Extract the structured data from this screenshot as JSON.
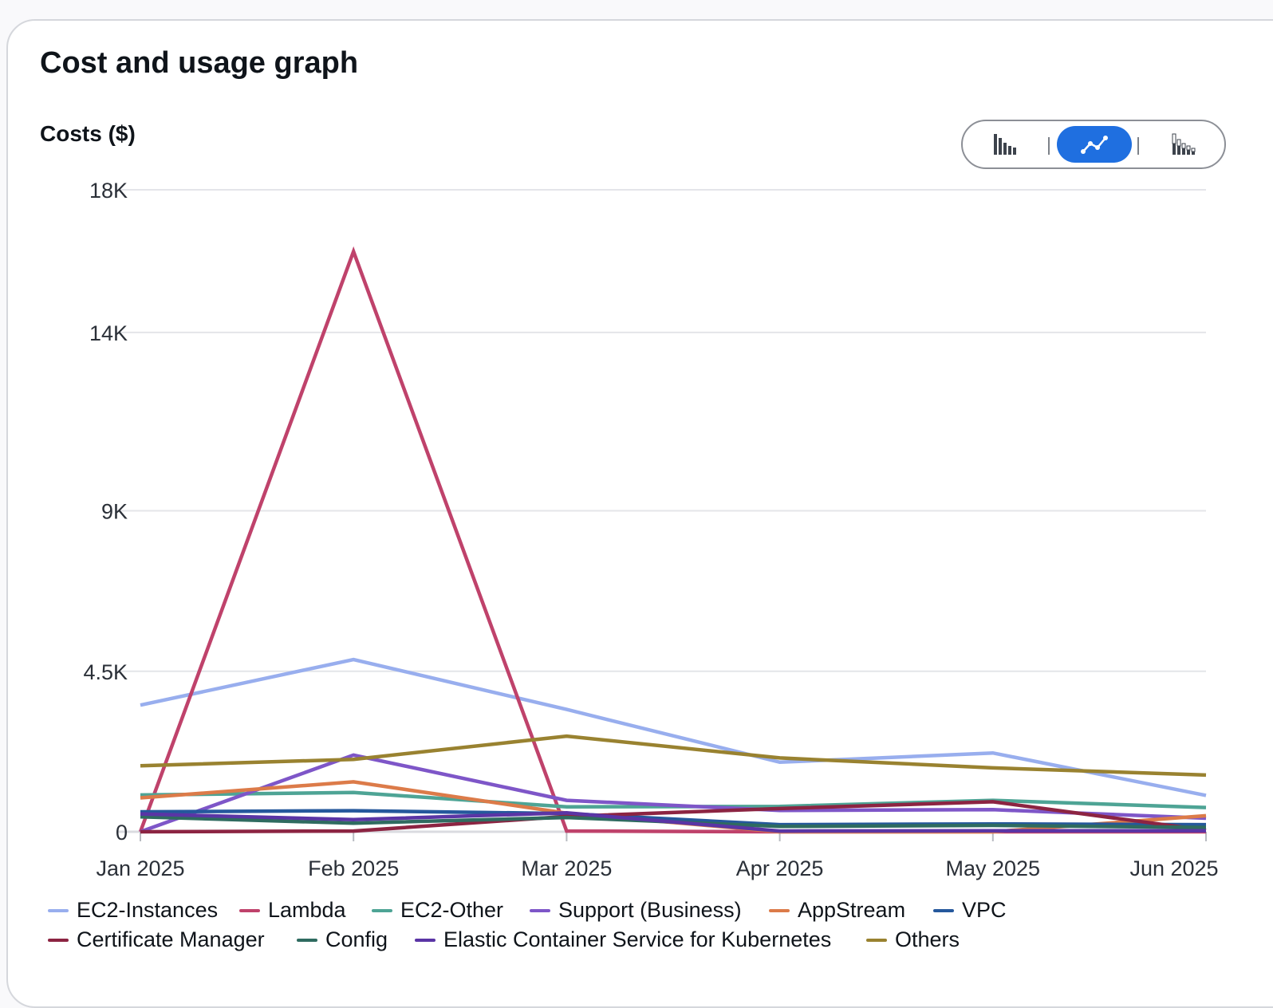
{
  "card": {
    "title": "Cost and usage graph"
  },
  "toggle": {
    "options": [
      "bar-chart-icon",
      "line-chart-icon",
      "stacked-bar-chart-icon"
    ],
    "selected": "line-chart-icon",
    "accent": "#1f6fe0"
  },
  "chart_data": {
    "type": "line",
    "title": "Cost and usage graph",
    "ylabel": "Costs ($)",
    "xlabel": "",
    "categories": [
      "Jan 2025",
      "Feb 2025",
      "Mar 2025",
      "Apr 2025",
      "May 2025",
      "Jun 2025"
    ],
    "ylim": [
      0,
      18000
    ],
    "yticks": [
      {
        "value": 0,
        "label": "0"
      },
      {
        "value": 4500,
        "label": "4.5K"
      },
      {
        "value": 9000,
        "label": "9K"
      },
      {
        "value": 14000,
        "label": "14K"
      },
      {
        "value": 18000,
        "label": "18K"
      }
    ],
    "grid": true,
    "legend_position": "bottom",
    "series": [
      {
        "name": "EC2-Instances",
        "color": "#98aeee",
        "values": [
          3550,
          4830,
          3430,
          1950,
          2210,
          1020
        ]
      },
      {
        "name": "Lambda",
        "color": "#bf426b",
        "values": [
          0,
          16270,
          20,
          0,
          0,
          0
        ]
      },
      {
        "name": "EC2-Other",
        "color": "#4ea495",
        "values": [
          1030,
          1100,
          700,
          710,
          880,
          680
        ]
      },
      {
        "name": "Support (Business)",
        "color": "#7e56c8",
        "values": [
          0,
          2150,
          880,
          600,
          620,
          380
        ]
      },
      {
        "name": "AppStream",
        "color": "#dc7b49",
        "values": [
          950,
          1400,
          520,
          0,
          0,
          450
        ]
      },
      {
        "name": "VPC",
        "color": "#25589c",
        "values": [
          560,
          590,
          510,
          200,
          220,
          200
        ]
      },
      {
        "name": "Certificate Manager",
        "color": "#8c2442",
        "values": [
          0,
          20,
          430,
          650,
          840,
          40
        ]
      },
      {
        "name": "Config",
        "color": "#2f6b60",
        "values": [
          420,
          240,
          400,
          150,
          180,
          120
        ]
      },
      {
        "name": "Elastic Container Service for Kubernetes",
        "color": "#5a35a5",
        "values": [
          500,
          340,
          530,
          20,
          30,
          30
        ]
      },
      {
        "name": "Others",
        "color": "#998230",
        "values": [
          1850,
          2030,
          2680,
          2070,
          1790,
          1590
        ]
      }
    ]
  }
}
